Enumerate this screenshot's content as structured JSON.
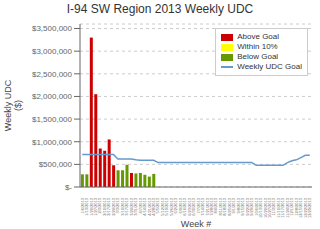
{
  "chart_data": {
    "type": "bar",
    "title": "I-94 SW Region 2013 Weekly UDC",
    "xlabel": "Week #",
    "ylabel": "Weekly UDC\n($)",
    "categories": [
      "1/6/2013",
      "1/13/2013",
      "1/20/2013",
      "1/27/2013",
      "2/3/2013",
      "2/10/2013",
      "2/17/2013",
      "2/24/2013",
      "3/3/2013",
      "3/10/2013",
      "3/17/2013",
      "3/24/2013",
      "3/31/2013",
      "4/7/2013",
      "4/14/2013",
      "4/21/2013",
      "4/28/2013",
      "5/5/2013",
      "5/12/2013",
      "5/19/2013",
      "5/26/2013",
      "6/2/2013",
      "6/9/2013",
      "6/16/2013",
      "6/23/2013",
      "6/30/2013",
      "7/7/2013",
      "7/14/2013",
      "7/21/2013",
      "7/28/2013",
      "8/4/2013",
      "8/11/2013",
      "8/18/2013",
      "8/25/2013",
      "9/1/2013",
      "9/8/2013",
      "9/15/2013",
      "9/22/2013",
      "9/29/2013",
      "10/6/2013",
      "10/13/2013",
      "10/20/2013",
      "10/27/2013",
      "11/3/2013",
      "11/10/2013",
      "11/17/2013",
      "11/24/2013",
      "12/1/2013",
      "12/8/2013",
      "12/15/2013",
      "12/22/2013",
      "12/29/2013"
    ],
    "series": [
      {
        "name": "Above Goal",
        "type": "bar",
        "color": "#cc0000",
        "values": [
          null,
          null,
          3300000,
          2050000,
          850000,
          800000,
          1050000,
          480000,
          null,
          null,
          null,
          310000,
          null,
          null,
          null,
          null,
          null,
          null,
          null,
          null,
          null,
          null,
          null,
          null,
          null,
          null,
          null,
          null,
          null,
          null,
          null,
          null,
          null,
          null,
          null,
          null,
          null,
          null,
          null,
          null,
          null,
          null,
          null,
          null,
          null,
          null,
          null,
          null,
          null,
          null,
          null,
          null
        ]
      },
      {
        "name": "Within 10%",
        "type": "bar",
        "color": "#ffff00",
        "values": [
          null,
          null,
          null,
          null,
          null,
          null,
          null,
          null,
          null,
          null,
          null,
          null,
          null,
          null,
          null,
          null,
          null,
          null,
          null,
          null,
          null,
          null,
          null,
          null,
          null,
          null,
          null,
          null,
          null,
          null,
          null,
          null,
          null,
          null,
          null,
          null,
          null,
          null,
          null,
          null,
          null,
          null,
          null,
          null,
          null,
          null,
          null,
          null,
          null,
          null,
          null,
          null
        ]
      },
      {
        "name": "Below Goal",
        "type": "bar",
        "color": "#669900",
        "values": [
          280000,
          280000,
          null,
          null,
          null,
          null,
          null,
          null,
          370000,
          370000,
          490000,
          null,
          300000,
          310000,
          270000,
          230000,
          290000,
          null,
          null,
          null,
          null,
          null,
          null,
          null,
          null,
          null,
          null,
          null,
          null,
          null,
          null,
          null,
          null,
          null,
          null,
          null,
          null,
          null,
          null,
          null,
          null,
          null,
          null,
          null,
          null,
          null,
          null,
          null,
          null,
          null,
          null,
          null
        ]
      },
      {
        "name": "Weekly UDC Goal",
        "type": "line",
        "color": "#6699cc",
        "values": [
          720000,
          720000,
          720000,
          720000,
          720000,
          720000,
          720000,
          720000,
          620000,
          620000,
          620000,
          620000,
          600000,
          590000,
          590000,
          590000,
          590000,
          540000,
          540000,
          540000,
          540000,
          540000,
          540000,
          540000,
          540000,
          540000,
          540000,
          540000,
          540000,
          540000,
          540000,
          540000,
          540000,
          540000,
          540000,
          540000,
          540000,
          540000,
          540000,
          480000,
          480000,
          480000,
          480000,
          480000,
          480000,
          480000,
          540000,
          580000,
          600000,
          650000,
          700000,
          700000
        ]
      }
    ],
    "stacked": true,
    "ylim": [
      0,
      3600000
    ],
    "yticks": [
      {
        "value": 0,
        "label": "$-"
      },
      {
        "value": 500000,
        "label": "$500,000"
      },
      {
        "value": 1000000,
        "label": "$1,000,000"
      },
      {
        "value": 1500000,
        "label": "$1,500,000"
      },
      {
        "value": 2000000,
        "label": "$2,000,000"
      },
      {
        "value": 2500000,
        "label": "$2,500,000"
      },
      {
        "value": 3000000,
        "label": "$3,000,000"
      },
      {
        "value": 3500000,
        "label": "$3,500,000"
      }
    ],
    "grid": true,
    "legend": "upper right"
  }
}
